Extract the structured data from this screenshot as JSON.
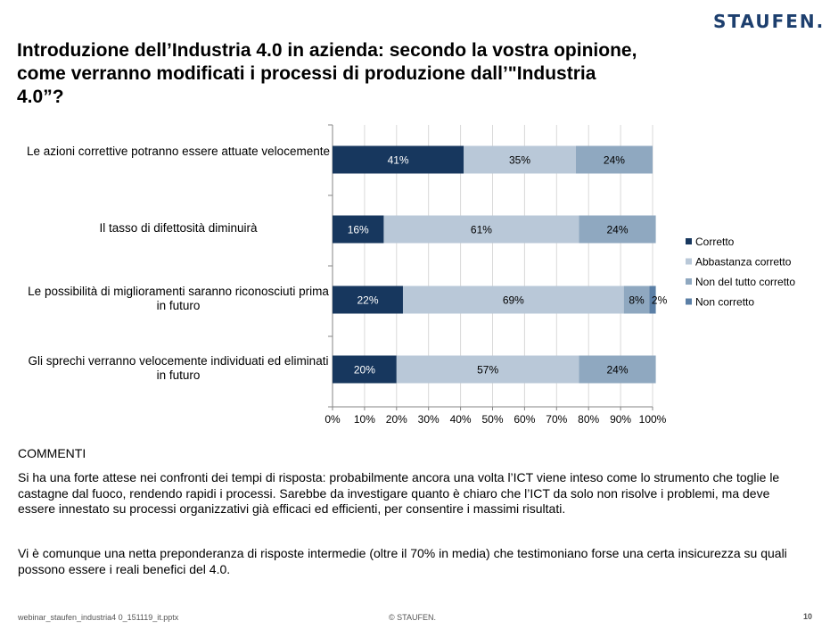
{
  "logo": "STAUFEN.",
  "title": "Introduzione dell’Industria 4.0 in azienda: secondo la vostra opinione, come verranno modificati i processi di produzione dall’\"Industria 4.0”?",
  "chart_data": {
    "type": "bar",
    "orientation": "horizontal",
    "stacked": true,
    "categories": [
      "Le azioni correttive potranno essere attuate velocemente",
      "Il tasso di difettosità diminuirà",
      "Le possibilità di miglioramenti saranno riconosciuti prima in futuro",
      "Gli sprechi verranno velocemente individuati ed eliminati in futuro"
    ],
    "series": [
      {
        "name": "Corretto",
        "values": [
          41,
          16,
          22,
          20
        ],
        "labels": [
          "41%",
          "16%",
          "22%",
          "20%"
        ],
        "color": "#17375e"
      },
      {
        "name": "Abbastanza corretto",
        "values": [
          35,
          61,
          69,
          57
        ],
        "labels": [
          "35%",
          "61%",
          "69%",
          "57%"
        ],
        "color": "#b9c8d8"
      },
      {
        "name": "Non del tutto corretto",
        "values": [
          24,
          24,
          8,
          24
        ],
        "labels": [
          "24%",
          "24%",
          "8%",
          "24%"
        ],
        "color": "#8fa8c0"
      },
      {
        "name": "Non corretto",
        "values": [
          0,
          0,
          2,
          0
        ],
        "labels": [
          "",
          "",
          "2%",
          ""
        ],
        "color": "#5b7fa6"
      }
    ],
    "xticks": [
      "0%",
      "10%",
      "20%",
      "30%",
      "40%",
      "50%",
      "60%",
      "70%",
      "80%",
      "90%",
      "100%"
    ],
    "xlim": [
      0,
      100
    ],
    "legend_position": "right",
    "grid": true
  },
  "comments": {
    "heading": "COMMENTI",
    "paragraphs": [
      "Si ha una forte attese nei confronti dei tempi di risposta: probabilmente ancora una volta l’ICT viene inteso come lo strumento che toglie le castagne dal fuoco, rendendo rapidi i processi. Sarebbe da investigare quanto è chiaro che l’ICT da solo non risolve i problemi, ma deve essere innestato su processi organizzativi già efficaci ed efficienti, per consentire i massimi risultati.",
      "Vi è comunque una netta preponderanza di risposte intermedie (oltre il 70% in media) che testimoniano forse una certa insicurezza su quali possono essere i reali benefici del 4.0."
    ]
  },
  "footer": {
    "filename": "webinar_staufen_industria4 0_151119_it.pptx",
    "copyright": "© STAUFEN.",
    "page": "10"
  }
}
